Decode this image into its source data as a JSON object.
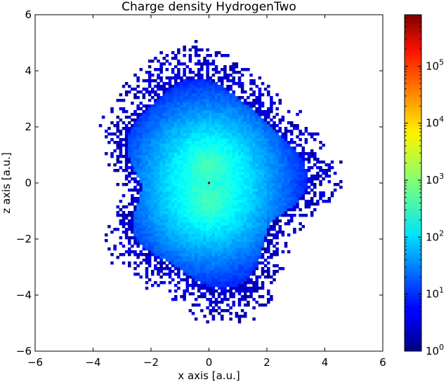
{
  "chart_data": {
    "type": "heatmap",
    "title": "Charge density HydrogenTwo",
    "xlabel": "x axis [a.u.]",
    "ylabel": "z axis [a.u.]",
    "xlim": [
      -6,
      6
    ],
    "ylim": [
      -6,
      6
    ],
    "xticks": [
      -6,
      -4,
      -2,
      0,
      2,
      4,
      6
    ],
    "yticks": [
      -6,
      -4,
      -2,
      0,
      2,
      4,
      6
    ],
    "xtick_labels": [
      "−6",
      "−4",
      "−2",
      "0",
      "2",
      "4",
      "6"
    ],
    "ytick_labels": [
      "−6",
      "−4",
      "−2",
      "0",
      "2",
      "4",
      "6"
    ],
    "colormap": "jet",
    "colorbar": {
      "scale": "log",
      "range": [
        1,
        800000
      ],
      "ticks": [
        {
          "base": "10",
          "exp": "0",
          "value": 1
        },
        {
          "base": "10",
          "exp": "1",
          "value": 10
        },
        {
          "base": "10",
          "exp": "2",
          "value": 100
        },
        {
          "base": "10",
          "exp": "3",
          "value": 1000
        },
        {
          "base": "10",
          "exp": "4",
          "value": 10000
        },
        {
          "base": "10",
          "exp": "5",
          "value": 100000
        }
      ]
    },
    "grid": false,
    "density_model": {
      "description_free": true,
      "nuclei_z": [
        0.7,
        -0.7
      ],
      "nuclei_x": [
        0,
        0
      ],
      "peak_count": 800,
      "bin_size": 0.1,
      "edge_radius_x": 3.2,
      "edge_radius_z": 3.9,
      "center_spike": {
        "x": 0,
        "z": 0,
        "count": 700000
      }
    }
  }
}
